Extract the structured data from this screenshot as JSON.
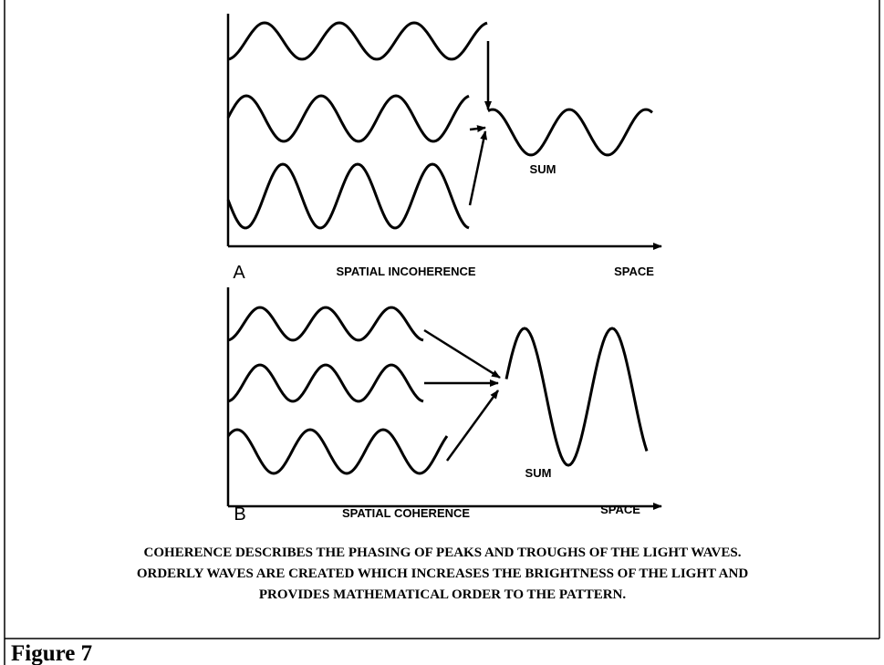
{
  "diagram_a": {
    "label": "A",
    "sum_label": "SUM",
    "title": "SPATIAL INCOHERENCE",
    "axis_label": "SPACE"
  },
  "diagram_b": {
    "label": "B",
    "sum_label": "SUM",
    "title": "SPATIAL COHERENCE",
    "axis_label": "SPACE"
  },
  "caption": [
    "COHERENCE DESCRIBES THE PHASING OF PEAKS AND TROUGHS OF THE LIGHT WAVES.",
    "ORDERLY WAVES ARE CREATED WHICH INCREASES THE BRIGHTNESS OF THE LIGHT AND",
    "PROVIDES MATHEMATICAL ORDER TO THE PATTERN."
  ],
  "figure_label": "Figure 7"
}
